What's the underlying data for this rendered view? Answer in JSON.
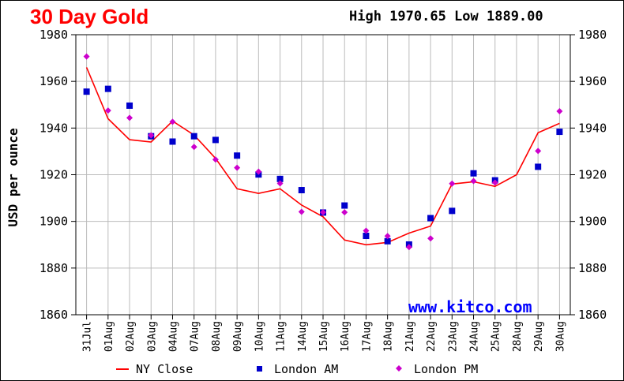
{
  "header": {
    "title": "30 Day Gold",
    "high_low": "High 1970.65 Low 1889.00"
  },
  "watermark": "www.kitco.com",
  "colors": {
    "title": "#ff0000",
    "watermark": "#0000ff",
    "ny_close": "#ff0000",
    "london_am": "#0000cc",
    "london_pm": "#cc00cc",
    "grid": "#bbbbbb"
  },
  "chart_data": {
    "type": "line",
    "title": "30 Day Gold",
    "ylabel": "USD per ounce",
    "xlabel": "",
    "ylim": [
      1860,
      1980
    ],
    "yticks": [
      1860,
      1880,
      1900,
      1920,
      1940,
      1960,
      1980
    ],
    "grid": true,
    "legend_position": "bottom",
    "categories": [
      "31Jul",
      "01Aug",
      "02Aug",
      "03Aug",
      "04Aug",
      "07Aug",
      "08Aug",
      "09Aug",
      "10Aug",
      "11Aug",
      "14Aug",
      "15Aug",
      "16Aug",
      "17Aug",
      "18Aug",
      "21Aug",
      "22Aug",
      "23Aug",
      "24Aug",
      "25Aug",
      "28Aug",
      "29Aug",
      "30Aug"
    ],
    "series": [
      {
        "name": "NY Close",
        "kind": "line",
        "values": [
          1966,
          1944,
          1935,
          1934,
          1943,
          1937,
          1927,
          1914,
          1912,
          1914,
          1907,
          1902,
          1892,
          1890,
          1891,
          1895,
          1898,
          1916,
          1917,
          1915,
          1920,
          1938,
          1942
        ]
      },
      {
        "name": "London AM",
        "kind": "square",
        "values": [
          1955.6,
          1956.8,
          1949.6,
          1936.5,
          1934.2,
          1936.5,
          1934.9,
          1928.2,
          1920.1,
          1918.2,
          1913.4,
          1903.8,
          1906.8,
          1893.8,
          1891.5,
          1890.1,
          1901.4,
          1904.5,
          1920.6,
          1917.6,
          null,
          1923.4,
          1938.4
        ]
      },
      {
        "name": "London PM",
        "kind": "diamond",
        "values": [
          1970.65,
          1947.5,
          1944.4,
          1936.9,
          1942.7,
          1931.9,
          1926.5,
          1923.0,
          1921.3,
          1916.3,
          1904.1,
          1903.9,
          1903.9,
          1896.0,
          1893.7,
          1889.0,
          1892.7,
          1916.2,
          1917.3,
          1916.6,
          null,
          1930.2,
          1947.2
        ]
      }
    ]
  }
}
